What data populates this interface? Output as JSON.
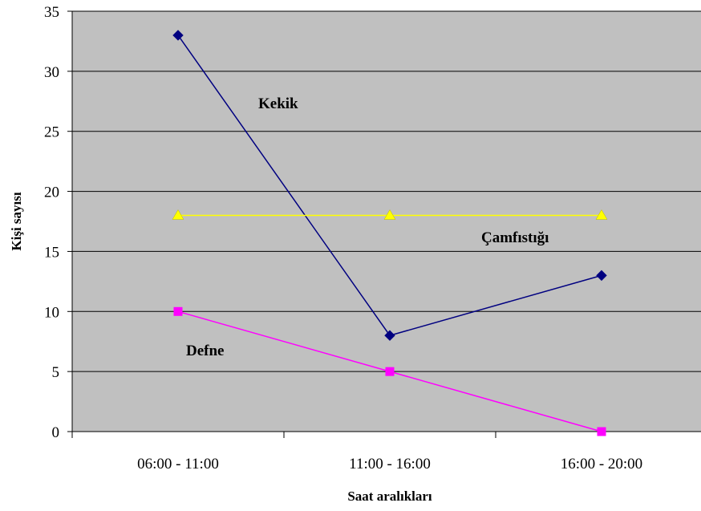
{
  "chart_data": {
    "type": "line",
    "categories": [
      "06:00 - 11:00",
      "11:00 - 16:00",
      "16:00 - 20:00"
    ],
    "series": [
      {
        "name": "Kekik",
        "values": [
          33,
          8,
          13
        ],
        "color": "#000080",
        "marker": "diamond"
      },
      {
        "name": "Çamfıstığı",
        "values": [
          18,
          18,
          18
        ],
        "color": "#ffff00",
        "marker": "triangle"
      },
      {
        "name": "Defne",
        "values": [
          10,
          5,
          0
        ],
        "color": "#ff00ff",
        "marker": "square"
      }
    ],
    "xlabel": "Saat aralıkları",
    "ylabel": "Kişi sayısı",
    "ylim": [
      0,
      35
    ],
    "yticks": [
      0,
      5,
      10,
      15,
      20,
      25,
      30,
      35
    ],
    "grid": true,
    "plot_background": "#c0c0c0",
    "legend": "labels placed inside the plot next to each line"
  }
}
